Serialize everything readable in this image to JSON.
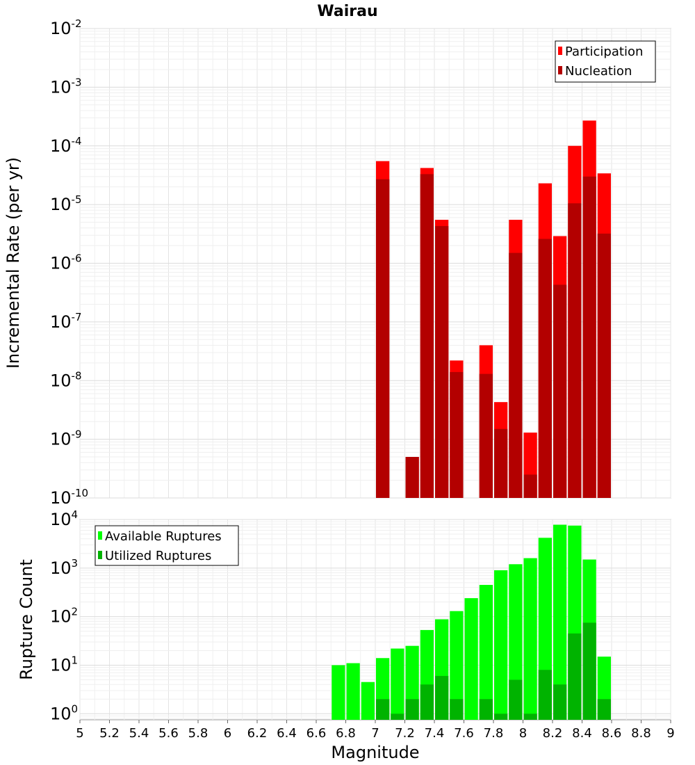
{
  "chart_data": [
    {
      "type": "bar",
      "title": "Wairau",
      "ylabel": "Incremental Rate (per yr)",
      "xlabel": "",
      "y_scale": "log",
      "ylim": [
        1e-10,
        0.01
      ],
      "xlim": [
        5,
        9
      ],
      "bar_width": 0.1,
      "legend_position": "top-right",
      "x": [
        7.05,
        7.25,
        7.35,
        7.45,
        7.55,
        7.75,
        7.85,
        7.95,
        8.05,
        8.15,
        8.25,
        8.35,
        8.45,
        8.55
      ],
      "series": [
        {
          "name": "Participation",
          "color": "#ff0000",
          "values": [
            5.5e-05,
            5e-10,
            4.2e-05,
            5.5e-06,
            2.2e-08,
            4e-08,
            4.3e-09,
            5.5e-06,
            1.3e-09,
            2.3e-05,
            2.9e-06,
            0.0001,
            0.00027,
            3.4e-05
          ]
        },
        {
          "name": "Nucleation",
          "color": "#b30000",
          "values": [
            2.7e-05,
            5e-10,
            3.3e-05,
            4.3e-06,
            1.4e-08,
            1.3e-08,
            1.5e-09,
            1.5e-06,
            2.5e-10,
            2.6e-06,
            4.3e-07,
            1.05e-05,
            3e-05,
            3.2e-06
          ]
        }
      ],
      "ytick_bases": [
        "10",
        "10",
        "10",
        "10",
        "10",
        "10",
        "10",
        "10",
        "10"
      ],
      "ytick_exponents": [
        "-10",
        "-9",
        "-8",
        "-7",
        "-6",
        "-5",
        "-4",
        "-3",
        "-2"
      ]
    },
    {
      "type": "bar",
      "title": "",
      "ylabel": "Rupture Count",
      "xlabel": "Magnitude",
      "y_scale": "log",
      "ylim": [
        0.75,
        10000
      ],
      "xlim": [
        5,
        9
      ],
      "bar_width": 0.1,
      "legend_position": "top-left",
      "x": [
        6.75,
        6.85,
        6.95,
        7.05,
        7.15,
        7.25,
        7.35,
        7.45,
        7.55,
        7.65,
        7.75,
        7.85,
        7.95,
        8.05,
        8.15,
        8.25,
        8.35,
        8.45,
        8.55
      ],
      "series": [
        {
          "name": "Available Ruptures",
          "color": "#00ff00",
          "values": [
            10,
            11,
            4.5,
            14,
            22,
            25,
            53,
            88,
            130,
            240,
            450,
            900,
            1200,
            1600,
            4200,
            7800,
            7500,
            1500,
            15
          ]
        },
        {
          "name": "Utilized Ruptures",
          "color": "#00b300",
          "values": [
            0,
            0,
            0,
            2,
            1,
            2,
            4,
            6,
            2,
            0,
            2,
            1,
            5,
            1,
            8,
            4,
            45,
            75,
            2
          ]
        }
      ],
      "ytick_bases": [
        "10",
        "10",
        "10",
        "10",
        "10"
      ],
      "ytick_exponents": [
        "0",
        "1",
        "2",
        "3",
        "4"
      ],
      "xticks": [
        "5",
        "5.2",
        "5.4",
        "5.6",
        "5.8",
        "6",
        "6.2",
        "6.4",
        "6.6",
        "6.8",
        "7",
        "7.2",
        "7.4",
        "7.6",
        "7.8",
        "8",
        "8.2",
        "8.4",
        "8.6",
        "8.8",
        "9"
      ]
    }
  ]
}
